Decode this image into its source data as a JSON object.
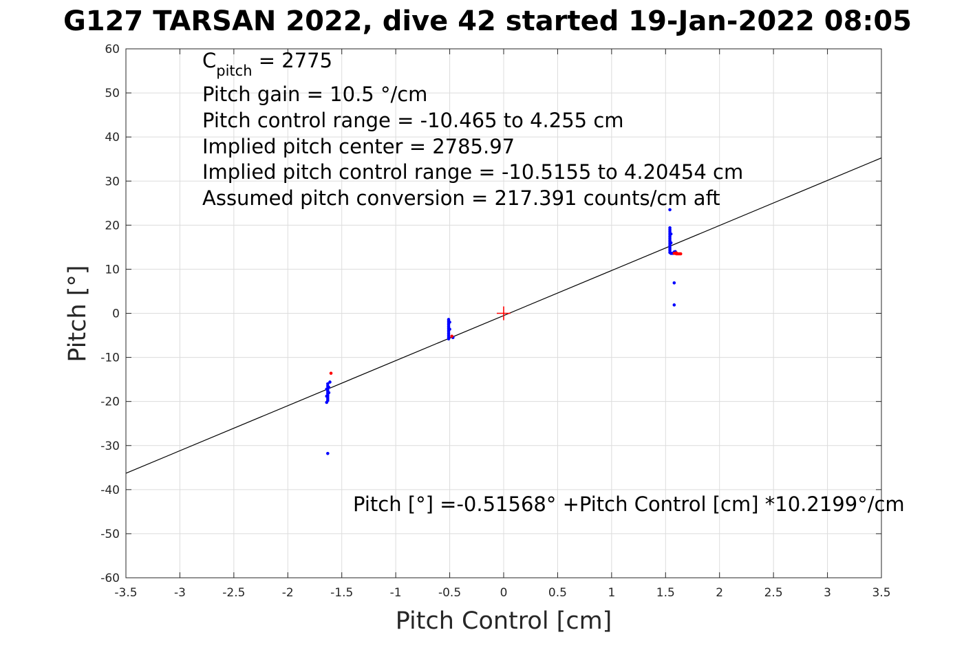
{
  "chart_data": {
    "type": "scatter",
    "title": "G127 TARSAN 2022, dive 42 started 19-Jan-2022 08:05",
    "xlabel": "Pitch Control [cm]",
    "ylabel": "Pitch [°]",
    "xlim": [
      -3.5,
      3.5
    ],
    "ylim": [
      -60,
      60
    ],
    "xticks": [
      -3.5,
      -3,
      -2.5,
      -2,
      -1.5,
      -1,
      -0.5,
      0,
      0.5,
      1,
      1.5,
      2,
      2.5,
      3,
      3.5
    ],
    "xtick_labels": [
      "-3.5",
      "-3",
      "-2.5",
      "-2",
      "-1.5",
      "-1",
      "-0.5",
      "0",
      "0.5",
      "1",
      "1.5",
      "2",
      "2.5",
      "3",
      "3.5"
    ],
    "yticks": [
      -60,
      -50,
      -40,
      -30,
      -20,
      -10,
      0,
      10,
      20,
      30,
      40,
      50,
      60
    ],
    "ytick_labels": [
      "-60",
      "-50",
      "-40",
      "-30",
      "-20",
      "-10",
      "0",
      "10",
      "20",
      "30",
      "40",
      "50",
      "60"
    ],
    "grid": true,
    "fit_line": {
      "intercept": -0.51568,
      "slope": 10.2199,
      "color": "#000000"
    },
    "center_marker": {
      "x": 0,
      "y": 0,
      "color": "#ff0000"
    },
    "series": [
      {
        "color": "#0000ff",
        "points": [
          [
            -1.63,
            -16.0
          ],
          [
            -1.63,
            -16.5
          ],
          [
            -1.63,
            -17.0
          ],
          [
            -1.63,
            -17.4
          ],
          [
            -1.63,
            -17.8
          ],
          [
            -1.63,
            -18.2
          ],
          [
            -1.63,
            -18.6
          ],
          [
            -1.63,
            -19.0
          ],
          [
            -1.63,
            -19.4
          ],
          [
            -1.63,
            -19.8
          ],
          [
            -1.64,
            -20.2
          ],
          [
            -1.62,
            -16.8
          ],
          [
            -1.62,
            -18.0
          ],
          [
            -1.64,
            -17.2
          ],
          [
            -1.64,
            -18.8
          ],
          [
            -1.61,
            -15.6
          ],
          [
            -1.63,
            -31.8
          ],
          [
            -0.51,
            -1.4
          ],
          [
            -0.51,
            -1.8
          ],
          [
            -0.51,
            -2.2
          ],
          [
            -0.51,
            -2.6
          ],
          [
            -0.51,
            -3.0
          ],
          [
            -0.51,
            -3.4
          ],
          [
            -0.51,
            -3.8
          ],
          [
            -0.51,
            -4.2
          ],
          [
            -0.51,
            -4.6
          ],
          [
            -0.51,
            -5.0
          ],
          [
            -0.51,
            -5.4
          ],
          [
            -0.51,
            -5.8
          ],
          [
            -0.5,
            -2.0
          ],
          [
            -0.5,
            -3.6
          ],
          [
            -0.47,
            -5.5
          ],
          [
            1.54,
            23.5
          ],
          [
            1.54,
            19.4
          ],
          [
            1.54,
            19.0
          ],
          [
            1.54,
            18.6
          ],
          [
            1.54,
            18.2
          ],
          [
            1.54,
            17.8
          ],
          [
            1.54,
            17.4
          ],
          [
            1.54,
            17.0
          ],
          [
            1.54,
            16.6
          ],
          [
            1.54,
            16.2
          ],
          [
            1.54,
            15.8
          ],
          [
            1.54,
            15.4
          ],
          [
            1.54,
            15.0
          ],
          [
            1.54,
            14.6
          ],
          [
            1.54,
            14.2
          ],
          [
            1.54,
            13.8
          ],
          [
            1.55,
            13.6
          ],
          [
            1.56,
            13.6
          ],
          [
            1.57,
            13.6
          ],
          [
            1.58,
            13.9
          ],
          [
            1.59,
            14.0
          ],
          [
            1.55,
            18.0
          ],
          [
            1.55,
            16.0
          ],
          [
            1.58,
            6.9
          ],
          [
            1.58,
            1.9
          ]
        ]
      },
      {
        "color": "#ff0000",
        "points": [
          [
            -1.6,
            -13.6
          ],
          [
            -0.48,
            -5.2
          ],
          [
            1.58,
            13.6
          ],
          [
            1.6,
            13.5
          ],
          [
            1.61,
            13.5
          ],
          [
            1.62,
            13.5
          ],
          [
            1.63,
            13.5
          ],
          [
            1.64,
            13.5
          ],
          [
            1.6,
            13.7
          ]
        ]
      }
    ],
    "annotations": {
      "c_pitch_main": "C",
      "c_pitch_sub": "pitch",
      "c_pitch_rest": " = 2775",
      "lines": [
        "Pitch gain = 10.5 °/cm",
        "Pitch control range = -10.465 to 4.255 cm",
        "Implied pitch center = 2785.97",
        "Implied pitch control range = -10.5155 to 4.20454 cm",
        "Assumed pitch conversion = 217.391 counts/cm aft"
      ],
      "fit_equation": "Pitch [°] =-0.51568° +Pitch Control [cm] *10.2199°/cm"
    }
  }
}
